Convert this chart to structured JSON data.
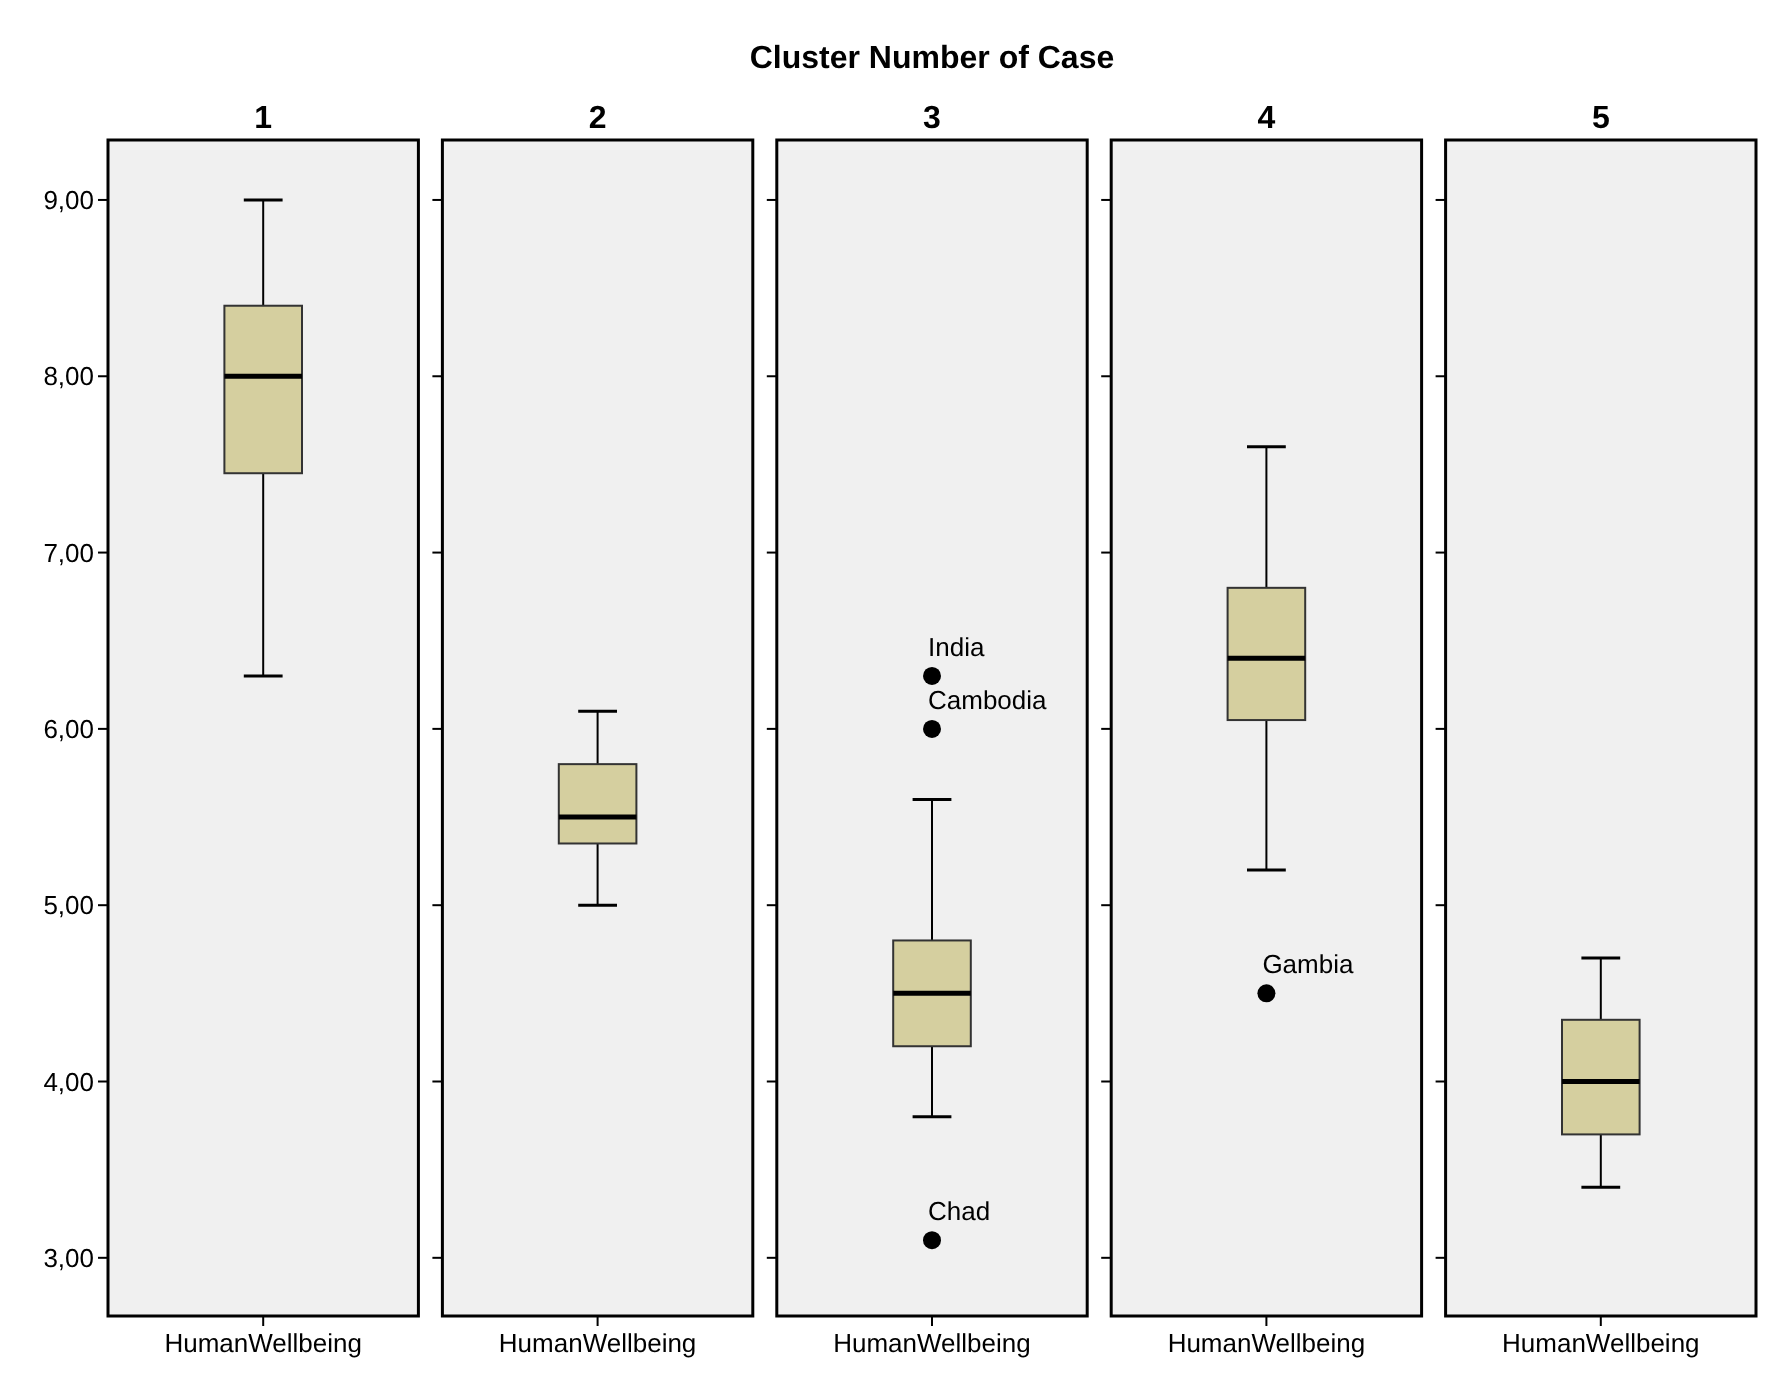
{
  "chart_data": [
    {
      "type": "box",
      "title": "1",
      "annotations": [
        "Cluster Number of Case"
      ],
      "categories": [
        "HumanWellbeing"
      ],
      "ylim": [
        2.67,
        9.34
      ],
      "yticks": [
        {
          "value": 3,
          "label": "3,00"
        },
        {
          "value": 4,
          "label": "4,00"
        },
        {
          "value": 5,
          "label": "5,00"
        },
        {
          "value": 6,
          "label": "6,00"
        },
        {
          "value": 7,
          "label": "7,00"
        },
        {
          "value": 8,
          "label": "8,00"
        },
        {
          "value": 9,
          "label": "9,00"
        }
      ],
      "series": [
        {
          "color": "#d5cf9f",
          "boxes": [
            {
              "low": 6.3,
              "q1": 7.45,
              "median": 8.0,
              "q3": 8.4,
              "high": 9.0
            }
          ]
        }
      ]
    },
    {
      "type": "box",
      "title": "2",
      "categories": [
        "HumanWellbeing"
      ],
      "tick_labels": "x",
      "ylim": [
        2.67,
        9.34
      ],
      "yticks": [
        {
          "value": 3,
          "label": null
        },
        {
          "value": 4,
          "label": null
        },
        {
          "value": 5,
          "label": null
        },
        {
          "value": 6,
          "label": null
        },
        {
          "value": 7,
          "label": null
        },
        {
          "value": 8,
          "label": null
        },
        {
          "value": 9,
          "label": null
        }
      ],
      "series": [
        {
          "color": "#d5cf9f",
          "boxes": [
            {
              "low": 5.0,
              "q1": 5.35,
              "median": 5.5,
              "q3": 5.8,
              "high": 6.1
            }
          ]
        }
      ]
    },
    {
      "type": "box",
      "title": "3",
      "categories": [
        "HumanWellbeing"
      ],
      "tick_labels": "x",
      "ylim": [
        2.67,
        9.34
      ],
      "yticks": [
        {
          "value": 3,
          "label": null
        },
        {
          "value": 4,
          "label": null
        },
        {
          "value": 5,
          "label": null
        },
        {
          "value": 6,
          "label": null
        },
        {
          "value": 7,
          "label": null
        },
        {
          "value": 8,
          "label": null
        },
        {
          "value": 9,
          "label": null
        }
      ],
      "annotations": [
        "India",
        "Cambodia",
        "Chad"
      ],
      "series": [
        {
          "color": "#d5cf9f",
          "boxes": [
            {
              "low": 3.8,
              "q1": 4.2,
              "median": 4.5,
              "q3": 4.8,
              "high": 5.6,
              "outliers": [
                6.3,
                6.0,
                3.1
              ]
            }
          ]
        }
      ]
    },
    {
      "type": "box",
      "title": "4",
      "categories": [
        "HumanWellbeing"
      ],
      "tick_labels": "x",
      "ylim": [
        2.67,
        9.34
      ],
      "yticks": [
        {
          "value": 3,
          "label": null
        },
        {
          "value": 4,
          "label": null
        },
        {
          "value": 5,
          "label": null
        },
        {
          "value": 6,
          "label": null
        },
        {
          "value": 7,
          "label": null
        },
        {
          "value": 8,
          "label": null
        },
        {
          "value": 9,
          "label": null
        }
      ],
      "annotations": [
        "Gambia"
      ],
      "series": [
        {
          "color": "#d5cf9f",
          "boxes": [
            {
              "low": 5.2,
              "q1": 6.05,
              "median": 6.4,
              "q3": 6.8,
              "high": 7.6,
              "outliers": [
                4.5
              ]
            }
          ]
        }
      ]
    },
    {
      "type": "box",
      "title": "5",
      "categories": [
        "HumanWellbeing"
      ],
      "tick_labels": "x",
      "ylim": [
        2.67,
        9.34
      ],
      "yticks": [
        {
          "value": 3,
          "label": null
        },
        {
          "value": 4,
          "label": null
        },
        {
          "value": 5,
          "label": null
        },
        {
          "value": 6,
          "label": null
        },
        {
          "value": 7,
          "label": null
        },
        {
          "value": 8,
          "label": null
        },
        {
          "value": 9,
          "label": null
        }
      ],
      "series": [
        {
          "color": "#d5cf9f",
          "boxes": [
            {
              "low": 3.4,
              "q1": 3.7,
              "median": 4.0,
              "q3": 4.35,
              "high": 4.7
            }
          ]
        }
      ]
    }
  ]
}
